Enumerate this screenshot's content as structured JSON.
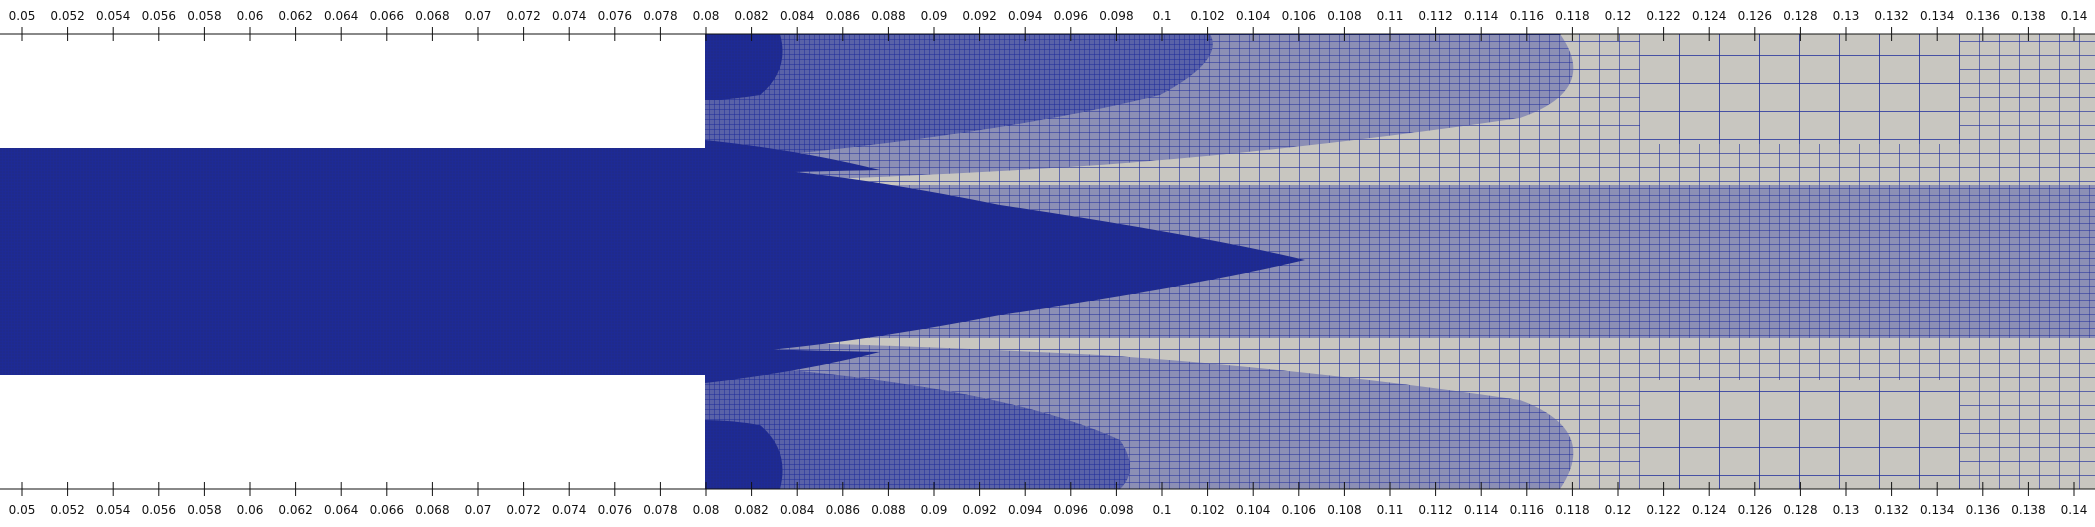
{
  "axes": {
    "top_tick_labels": [
      "0.05",
      "0.052",
      "0.054",
      "0.056",
      "0.058",
      "0.06",
      "0.062",
      "0.064",
      "0.066",
      "0.068",
      "0.07",
      "0.072",
      "0.074",
      "0.076",
      "0.078",
      "0.08",
      "0.082",
      "0.084",
      "0.086",
      "0.088",
      "0.09",
      "0.092",
      "0.094",
      "0.096",
      "0.098",
      "0.1",
      "0.102",
      "0.104",
      "0.106",
      "0.108",
      "0.11",
      "0.112",
      "0.114",
      "0.116",
      "0.118",
      "0.12",
      "0.122",
      "0.124",
      "0.126",
      "0.128",
      "0.13",
      "0.132",
      "0.134",
      "0.136",
      "0.138",
      "0.14"
    ],
    "bottom_tick_labels": [
      "0.05",
      "0.052",
      "0.054",
      "0.056",
      "0.058",
      "0.06",
      "0.062",
      "0.064",
      "0.066",
      "0.068",
      "0.07",
      "0.072",
      "0.074",
      "0.076",
      "0.078",
      "0.08",
      "0.082",
      "0.084",
      "0.086",
      "0.088",
      "0.09",
      "0.092",
      "0.094",
      "0.096",
      "0.098",
      "0.1",
      "0.102",
      "0.104",
      "0.106",
      "0.108",
      "0.11",
      "0.112",
      "0.114",
      "0.116",
      "0.118",
      "0.12",
      "0.122",
      "0.124",
      "0.126",
      "0.128",
      "0.13",
      "0.132",
      "0.134",
      "0.136",
      "0.138",
      "0.14"
    ]
  },
  "colors": {
    "mesh_fine": "#1f2a8c",
    "mesh_line": "#1c2a9a",
    "mesh_face": "#c8c6c0",
    "background": "#ffffff",
    "axis": "#111111"
  }
}
